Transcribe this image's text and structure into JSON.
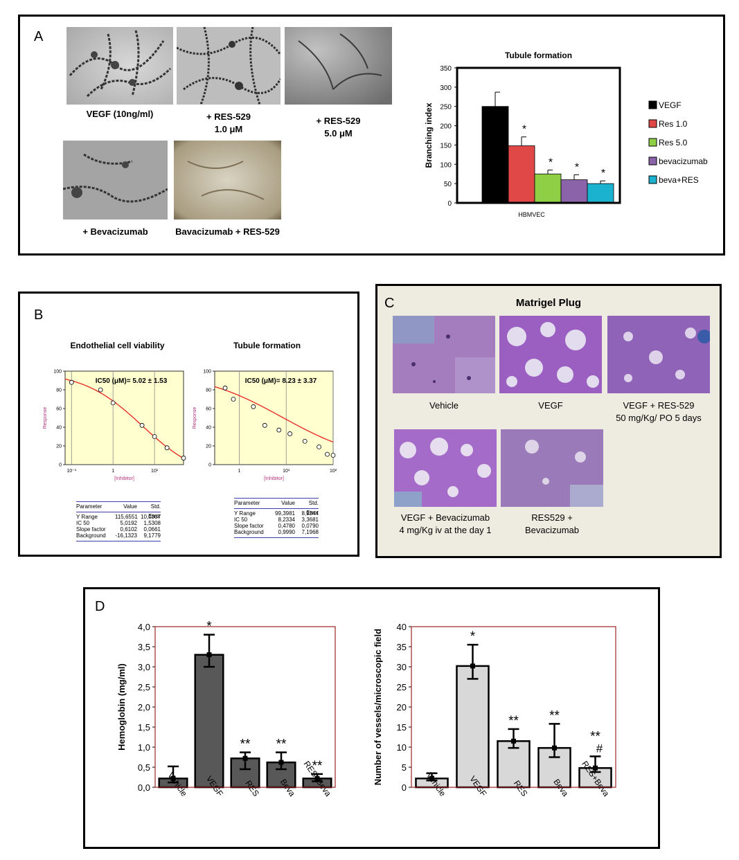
{
  "panelA": {
    "letter": "A",
    "captions": {
      "vegf": "VEGF (10ng/ml)",
      "res1_line1": "+ RES-529",
      "res1_line2": "1.0 μM",
      "res5_line1": "+ RES-529",
      "res5_line2": "5.0 μM",
      "beva": "+ Bevacizumab",
      "bevares": "Bavacizumab + RES-529"
    }
  },
  "panelB": {
    "letter": "B",
    "table1": {
      "headers": [
        "Parameter",
        "Value",
        "Std. Error"
      ],
      "rows": [
        [
          "Y Range",
          "115,6551",
          "10,0307"
        ],
        [
          "IC 50",
          "5,0192",
          "1,5308"
        ],
        [
          "Slope factor",
          "0,6102",
          "0,0661"
        ],
        [
          "Background",
          "-16,1323",
          "9,1779"
        ]
      ]
    },
    "table2": {
      "headers": [
        "Parameter",
        "Value",
        "Std. Error"
      ],
      "rows": [
        [
          "Y Range",
          "99,3981",
          "8,9344"
        ],
        [
          "IC 50",
          "8,2334",
          "3,3681"
        ],
        [
          "Slope factor",
          "0,4780",
          "0,0790"
        ],
        [
          "Background",
          "0,9990",
          "7,1968"
        ]
      ]
    }
  },
  "panelC": {
    "letter": "C",
    "title": "Matrigel Plug",
    "captions": {
      "vehicle": "Vehicle",
      "vegf": "VEGF",
      "vegfres_line1": "VEGF + RES-529",
      "vegfres_line2": "50 mg/Kg/ PO 5 days",
      "vegfbeva_line1": "VEGF + Bevacizumab",
      "vegfbeva_line2": "4 mg/Kg iv  at the day 1",
      "resbeva_line1": "RES529 +",
      "resbeva_line2": "Bevacizumab"
    }
  },
  "panelD": {
    "letter": "D"
  },
  "chart_data": [
    {
      "id": "A_tubule_formation",
      "type": "bar",
      "title": "Tubule formation",
      "xlabel": "HBMVEC",
      "ylabel": "Branching index",
      "ylim": [
        0,
        350
      ],
      "yticks": [
        0,
        50,
        100,
        150,
        200,
        250,
        300,
        350
      ],
      "legend_position": "right",
      "series": [
        {
          "name": "VEGF",
          "value": 250,
          "error": 37,
          "color": "#000000",
          "annotation": ""
        },
        {
          "name": "Res 1.0",
          "value": 148,
          "error": 23,
          "color": "#e04848",
          "annotation": "*"
        },
        {
          "name": "Res 5.0",
          "value": 75,
          "error": 10,
          "color": "#8fcf46",
          "annotation": "*"
        },
        {
          "name": "bevacizumab",
          "value": 60,
          "error": 13,
          "color": "#8a63a8",
          "annotation": "*"
        },
        {
          "name": "beva+RES",
          "value": 50,
          "error": 7,
          "color": "#1bb2cf",
          "annotation": "*"
        }
      ]
    },
    {
      "id": "B_endothelial_viability",
      "type": "scatter",
      "title": "Endothelial cell viability",
      "annotation": "IC50 (μM)= 5.02 ± 1.53",
      "xlabel": "[Inhibitor]",
      "ylabel": "Response",
      "xscale": "log",
      "xlim": [
        0.07,
        50
      ],
      "ylim": [
        0,
        100
      ],
      "yticks": [
        0,
        20,
        40,
        60,
        80,
        100
      ],
      "xtick_labels": [
        "10⁻¹",
        "1",
        "10¹"
      ],
      "fit": {
        "top": 99.5,
        "bottom": -16.1,
        "ic50": 5.02,
        "slope": 0.61
      },
      "points": [
        [
          0.1,
          88
        ],
        [
          0.5,
          80
        ],
        [
          1,
          66
        ],
        [
          5,
          42
        ],
        [
          10,
          30
        ],
        [
          20,
          18
        ],
        [
          50,
          7
        ]
      ]
    },
    {
      "id": "B_tubule_formation",
      "type": "scatter",
      "title": "Tubule formation",
      "annotation": "IC50 (μM)= 8.23 ± 3.37",
      "xlabel": "[Inhibitor]",
      "ylabel": "Response",
      "xscale": "log",
      "xlim": [
        0.3,
        100
      ],
      "ylim": [
        0,
        100
      ],
      "yticks": [
        0,
        20,
        40,
        60,
        80,
        100
      ],
      "xtick_labels": [
        "1",
        "10¹",
        "10²"
      ],
      "fit": {
        "top": 100.4,
        "bottom": 1.0,
        "ic50": 8.23,
        "slope": 0.478
      },
      "points": [
        [
          0.5,
          82
        ],
        [
          0.75,
          70
        ],
        [
          2,
          62
        ],
        [
          3.5,
          42
        ],
        [
          7,
          37
        ],
        [
          12,
          33
        ],
        [
          25,
          25
        ],
        [
          50,
          19
        ],
        [
          75,
          11
        ],
        [
          100,
          10
        ]
      ]
    },
    {
      "id": "D_hemoglobin",
      "type": "bar",
      "ylabel": "Hemoglobin (mg/ml)",
      "ylim": [
        0,
        4.0
      ],
      "yticks": [
        "0,0",
        "0,5",
        "1,0",
        "1,5",
        "2,0",
        "2,5",
        "3,0",
        "3,5",
        "4,0"
      ],
      "categories": [
        "Vehicle",
        "VEGF",
        "RES",
        "Beva",
        "RES+Beva"
      ],
      "values": [
        0.22,
        3.3,
        0.72,
        0.62,
        0.22
      ],
      "err_low": [
        0.12,
        3.0,
        0.45,
        0.45,
        0.15
      ],
      "err_high": [
        0.52,
        3.8,
        0.87,
        0.87,
        0.33
      ],
      "annotations": [
        "",
        "*",
        "**",
        "**",
        "**"
      ],
      "bar_color": "#585858"
    },
    {
      "id": "D_vessels",
      "type": "bar",
      "ylabel": "Number of vessels/microscopic field",
      "ylim": [
        0,
        40
      ],
      "yticks": [
        "0",
        "5",
        "10",
        "15",
        "20",
        "25",
        "30",
        "35",
        "40"
      ],
      "categories": [
        "Vehicle",
        "VEGF",
        "RES",
        "Beva",
        "RES+Beva"
      ],
      "values": [
        2.2,
        30.2,
        11.5,
        9.8,
        4.8
      ],
      "err_low": [
        1.7,
        27.0,
        9.8,
        7.5,
        3.8
      ],
      "err_high": [
        3.5,
        35.5,
        14.5,
        15.8,
        7.7
      ],
      "annotations": [
        "",
        "*",
        "**",
        "**",
        "**\n#"
      ],
      "bar_color": "#d8d8d8"
    }
  ]
}
